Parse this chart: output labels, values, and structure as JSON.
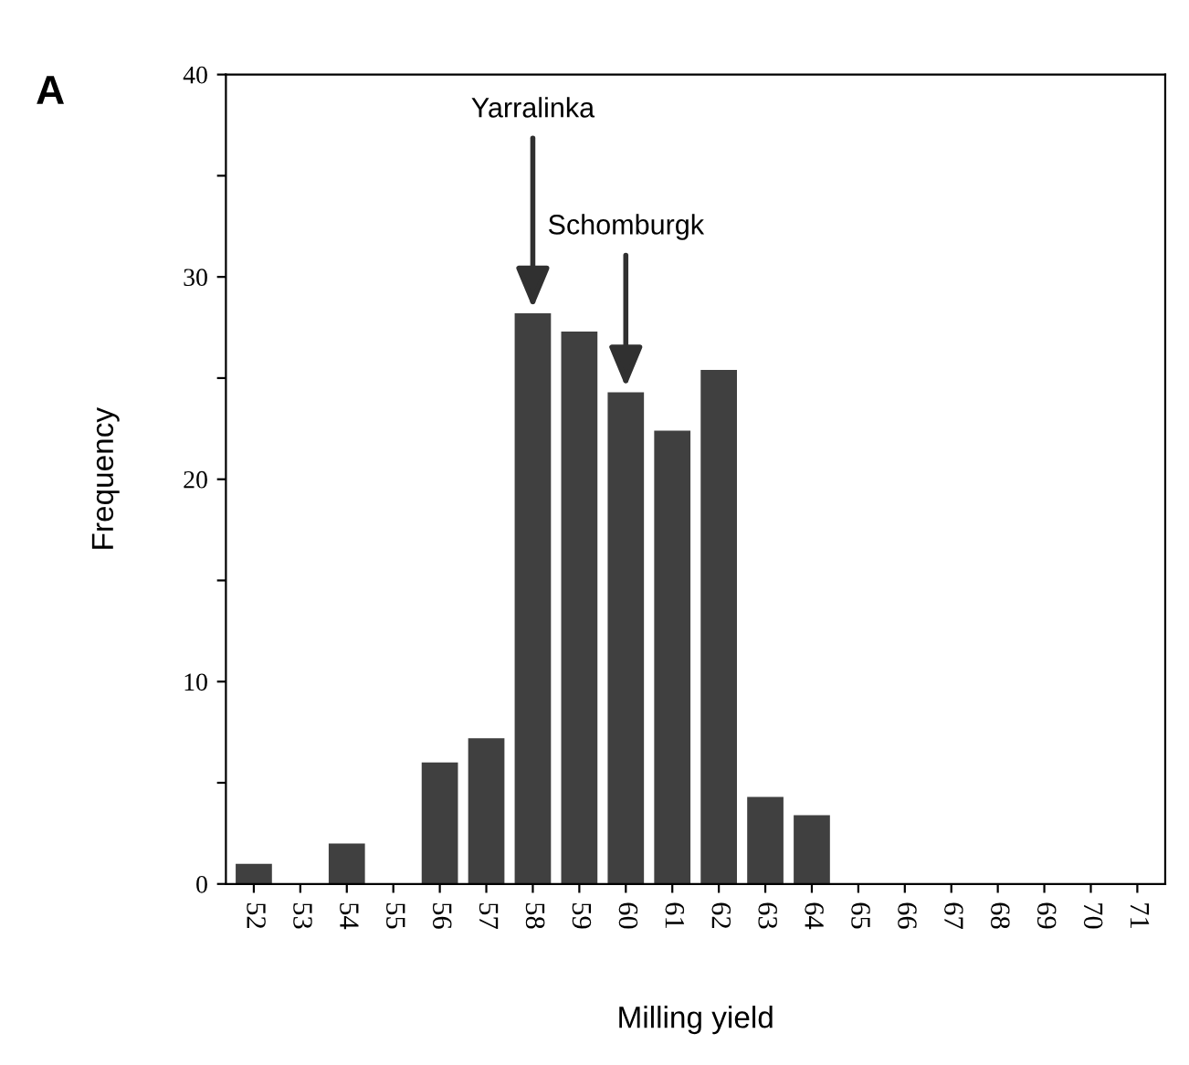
{
  "chart_data": {
    "type": "bar",
    "categories": [
      "52",
      "53",
      "54",
      "55",
      "56",
      "57",
      "58",
      "59",
      "60",
      "61",
      "62",
      "63",
      "64",
      "65",
      "66",
      "67",
      "68",
      "69",
      "70",
      "71"
    ],
    "values": [
      1,
      0,
      2,
      0,
      6,
      7.2,
      28.2,
      27.3,
      24.3,
      22.4,
      25.4,
      4.3,
      3.4,
      0,
      0,
      0,
      0,
      0,
      0,
      0
    ],
    "color": "#404040",
    "xlabel": "Milling yield",
    "ylabel": "Frequency",
    "ylim": [
      0,
      40
    ],
    "yticks": [
      0,
      {
        "value": 5,
        "label": null
      },
      10,
      {
        "value": 15,
        "label": null
      },
      20,
      {
        "value": 25,
        "label": null
      },
      30,
      {
        "value": 35,
        "label": null
      },
      40
    ],
    "annotations": [
      "A",
      {
        "text": "Yarralinka",
        "x": "58",
        "y": 28.2
      },
      {
        "text": "Schomburgk",
        "x": "60",
        "y": 24.3
      }
    ],
    "grid": false,
    "legend": false
  }
}
